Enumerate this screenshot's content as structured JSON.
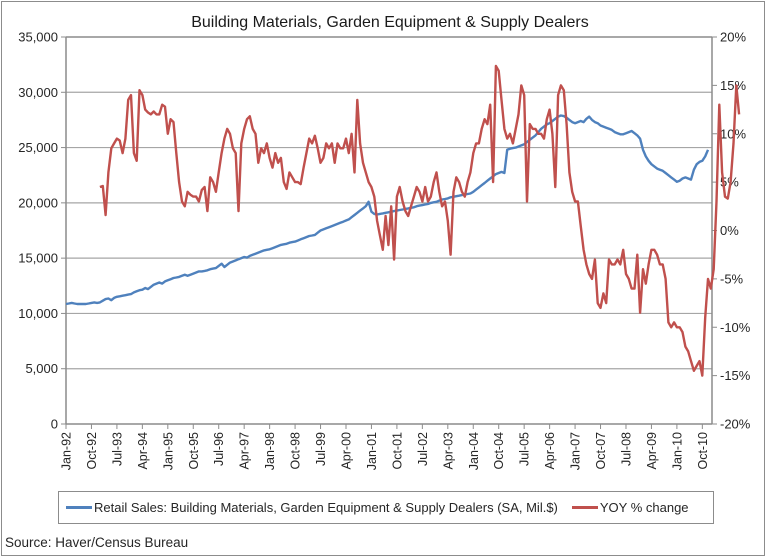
{
  "chart_data": {
    "type": "line",
    "title": "Building Materials, Garden Equipment & Supply Dealers",
    "source": "Source: Haver/Census Bureau",
    "x_start": "Jan-92",
    "x_frequency": "monthly",
    "x_tick_labels": [
      "Jan-92",
      "Oct-92",
      "Jul-93",
      "Apr-94",
      "Jan-95",
      "Oct-95",
      "Jul-96",
      "Apr-97",
      "Jan-98",
      "Oct-98",
      "Jul-99",
      "Apr-00",
      "Jan-01",
      "Oct-01",
      "Jul-02",
      "Apr-03",
      "Jan-04",
      "Oct-04",
      "Jul-05",
      "Apr-06",
      "Jan-07",
      "Oct-07",
      "Jul-08",
      "Apr-09",
      "Jan-10",
      "Oct-10"
    ],
    "y_left": {
      "min": 0,
      "max": 35000,
      "ticks": [
        "0",
        "5,000",
        "10,000",
        "15,000",
        "20,000",
        "25,000",
        "30,000",
        "35,000"
      ]
    },
    "y_right": {
      "min": -20,
      "max": 20,
      "ticks": [
        "-20%",
        "-15%",
        "-10%",
        "-5%",
        "0%",
        "5%",
        "10%",
        "15%",
        "20%"
      ]
    },
    "grid": true,
    "legend_position": "bottom",
    "series": [
      {
        "name": "Retail Sales: Building Materials, Garden Equipment & Supply Dealers (SA, Mil.$)",
        "axis": "left",
        "color": "#4f81bd",
        "start": "Jan-92",
        "values": [
          10850,
          10900,
          10950,
          10900,
          10850,
          10850,
          10850,
          10850,
          10900,
          10950,
          11000,
          10950,
          11000,
          11150,
          11300,
          11350,
          11200,
          11400,
          11500,
          11550,
          11600,
          11650,
          11700,
          11750,
          11900,
          12000,
          12100,
          12150,
          12300,
          12200,
          12400,
          12600,
          12700,
          12800,
          12700,
          12900,
          13000,
          13100,
          13200,
          13250,
          13300,
          13400,
          13500,
          13400,
          13500,
          13600,
          13700,
          13800,
          13800,
          13850,
          13900,
          14000,
          14050,
          14100,
          14300,
          14500,
          14200,
          14400,
          14600,
          14700,
          14800,
          14900,
          15000,
          15100,
          15050,
          15200,
          15300,
          15400,
          15500,
          15600,
          15700,
          15750,
          15800,
          15900,
          16000,
          16100,
          16200,
          16250,
          16300,
          16400,
          16450,
          16500,
          16600,
          16700,
          16800,
          16900,
          17000,
          17050,
          17100,
          17300,
          17500,
          17600,
          17700,
          17800,
          17900,
          18000,
          18100,
          18200,
          18300,
          18400,
          18500,
          18700,
          18900,
          19100,
          19300,
          19500,
          19700,
          20100,
          19200,
          19000,
          18950,
          19000,
          19050,
          19100,
          19150,
          19200,
          19250,
          19300,
          19350,
          19400,
          19450,
          19500,
          19550,
          19600,
          19700,
          19750,
          19800,
          19850,
          19900,
          20000,
          20050,
          20100,
          20200,
          20300,
          20350,
          20400,
          20500,
          20550,
          20600,
          20650,
          20700,
          20750,
          20800,
          20850,
          21000,
          21200,
          21400,
          21600,
          21800,
          22000,
          22200,
          22400,
          22600,
          22700,
          22800,
          22700,
          24800,
          24900,
          24950,
          25000,
          25100,
          25200,
          25300,
          25500,
          25700,
          25900,
          26100,
          26400,
          26700,
          26900,
          27100,
          27200,
          27400,
          27600,
          27800,
          27900,
          27850,
          27700,
          27500,
          27300,
          27200,
          27300,
          27400,
          27300,
          27600,
          27800,
          27500,
          27300,
          27200,
          27000,
          26900,
          26800,
          26700,
          26600,
          26400,
          26300,
          26200,
          26200,
          26300,
          26400,
          26500,
          26300,
          26100,
          25800,
          24800,
          24200,
          23800,
          23500,
          23300,
          23100,
          23000,
          22900,
          22700,
          22500,
          22300,
          22100,
          21900,
          22000,
          22200,
          22300,
          22200,
          22100,
          23000,
          23500,
          23700,
          23800,
          24200,
          24800
        ]
      },
      {
        "name": "YOY % change",
        "axis": "right",
        "color": "#c0504d",
        "start": "Jan-93",
        "values": [
          4.5,
          4.6,
          1.6,
          6.0,
          8.5,
          9.0,
          9.5,
          9.3,
          8.0,
          9.5,
          13.5,
          14.0,
          8.0,
          7.2,
          14.5,
          14.0,
          12.5,
          12.2,
          12.0,
          12.3,
          12.0,
          12.0,
          13.0,
          12.8,
          10.0,
          11.5,
          11.2,
          8.0,
          5.0,
          3.0,
          2.5,
          4.0,
          3.7,
          3.5,
          3.5,
          3.0,
          4.2,
          4.5,
          2.0,
          5.5,
          5.0,
          4.0,
          6.0,
          8.0,
          9.5,
          10.5,
          10.0,
          8.5,
          8.0,
          2.0,
          9.0,
          10.5,
          11.5,
          11.8,
          10.5,
          10.0,
          7.0,
          8.5,
          8.0,
          9.0,
          7.5,
          6.5,
          8.0,
          7.0,
          7.5,
          5.0,
          4.3,
          6.0,
          5.5,
          5.0,
          5.0,
          4.8,
          6.5,
          8.0,
          9.5,
          9.0,
          9.8,
          8.5,
          7.0,
          7.5,
          9.0,
          8.5,
          9.0,
          7.0,
          9.0,
          8.5,
          8.5,
          9.5,
          8.0,
          10.0,
          6.0,
          13.5,
          9.0,
          7.0,
          6.0,
          5.0,
          4.5,
          3.5,
          1.0,
          -0.5,
          -2.0,
          1.5,
          -1.5,
          2.5,
          -3.0,
          3.5,
          4.5,
          3.0,
          2.0,
          1.5,
          2.5,
          3.5,
          4.5,
          4.0,
          3.0,
          4.5,
          3.0,
          3.5,
          5.0,
          6.0,
          4.0,
          2.5,
          3.0,
          1.0,
          -2.5,
          4.0,
          5.5,
          5.0,
          4.0,
          3.5,
          5.0,
          6.0,
          8.0,
          9.0,
          9.0,
          10.5,
          11.5,
          11.0,
          13.0,
          5.0,
          17.0,
          16.5,
          13.5,
          10.5,
          9.5,
          10.0,
          9.0,
          10.5,
          12.0,
          15.0,
          14.0,
          3.0,
          11.0,
          10.5,
          10.5,
          10.0,
          10.0,
          9.5,
          11.5,
          12.5,
          10.0,
          4.5,
          14.0,
          15.0,
          14.5,
          11.0,
          6.0,
          4.0,
          3.0,
          3.0,
          0.5,
          -2.0,
          -3.5,
          -4.5,
          -5.0,
          -3.0,
          -7.5,
          -8.0,
          -6.5,
          -7.5,
          -3.0,
          -3.5,
          -3.5,
          -3.0,
          -3.5,
          -2.0,
          -4.5,
          -5.0,
          -6.0,
          -6.0,
          -2.5,
          -8.5,
          -4.0,
          -5.5,
          -3.5,
          -2.0,
          -2.0,
          -2.5,
          -3.5,
          -3.5,
          -5.0,
          -9.5,
          -10.0,
          -9.5,
          -10.0,
          -10.0,
          -10.5,
          -12.0,
          -12.5,
          -13.5,
          -14.5,
          -14.0,
          -13.5,
          -15.0,
          -9.0,
          -5.0,
          -6.0,
          -4.0,
          3.0,
          13.0,
          6.0,
          3.5,
          3.3,
          5.0,
          9.0,
          15.0,
          12.0
        ]
      }
    ]
  }
}
